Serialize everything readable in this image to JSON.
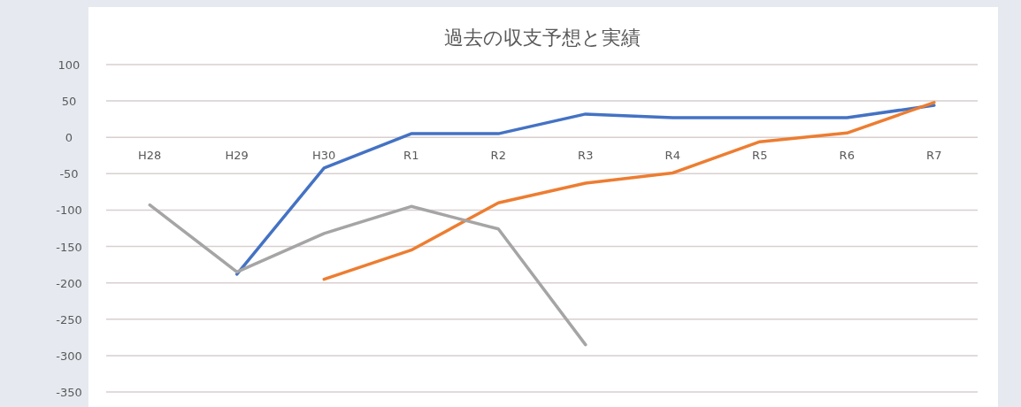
{
  "chart_data": {
    "type": "line",
    "title": "過去の収支予想と実績",
    "categories": [
      "H28",
      "H29",
      "H30",
      "R1",
      "R2",
      "R3",
      "R4",
      "R5",
      "R6",
      "R7"
    ],
    "series": [
      {
        "color": "#4472c4",
        "values": [
          null,
          -188,
          -42,
          5,
          5,
          32,
          27,
          27,
          27,
          44
        ]
      },
      {
        "color": "#ed7d31",
        "values": [
          null,
          null,
          -195,
          -155,
          -90,
          -63,
          -49,
          -6,
          6,
          48
        ]
      },
      {
        "color": "#a5a5a5",
        "values": [
          -93,
          -185,
          -132,
          -95,
          -126,
          -285,
          null,
          null,
          null,
          null
        ]
      }
    ],
    "ylim": [
      -350,
      100
    ],
    "yticks": [
      100,
      50,
      0,
      -50,
      -100,
      -150,
      -200,
      -250,
      -300,
      -350
    ],
    "grid": "y",
    "marker": "none",
    "line_style": "solid"
  }
}
